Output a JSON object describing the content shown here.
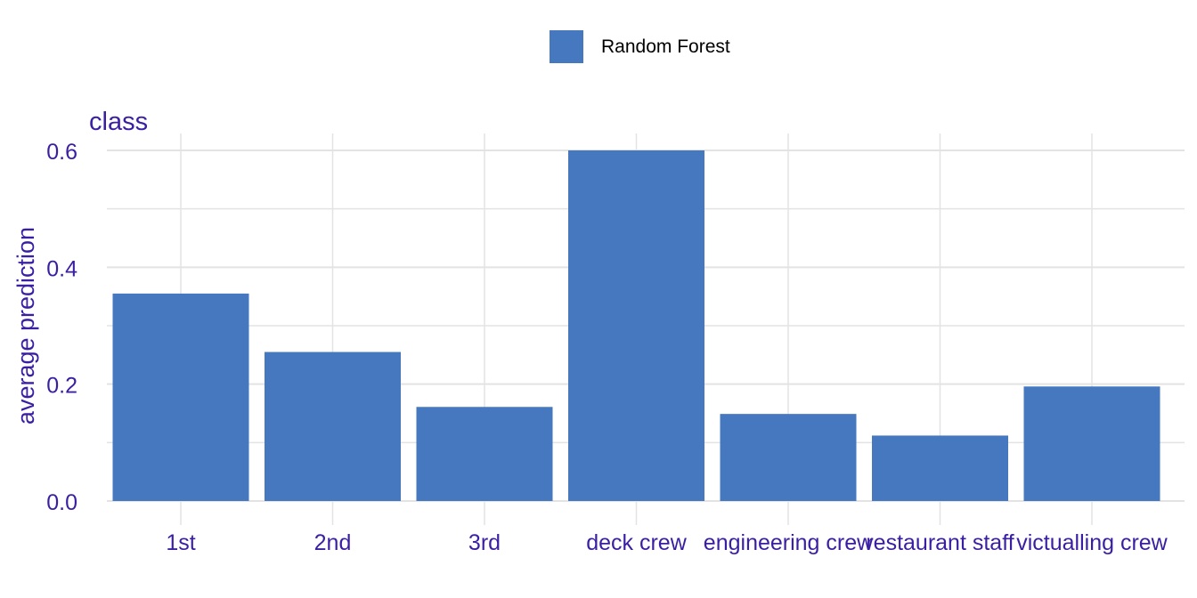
{
  "legend": {
    "label": "Random Forest"
  },
  "colors": {
    "bar": "#4578bf",
    "text": "#3b1fa3",
    "grid": "#e3e3e3"
  },
  "chart_data": {
    "type": "bar",
    "title": "class",
    "xlabel": "",
    "ylabel": "average prediction",
    "categories": [
      "1st",
      "2nd",
      "3rd",
      "deck crew",
      "engineering crew",
      "restaurant staff",
      "victualling crew"
    ],
    "series": [
      {
        "name": "Random Forest",
        "values": [
          0.355,
          0.255,
          0.161,
          0.6,
          0.149,
          0.112,
          0.196
        ]
      }
    ],
    "ylim": [
      0,
      0.6
    ],
    "yticks": [
      0.0,
      0.2,
      0.4,
      0.6
    ],
    "ytick_labels": [
      "0.0",
      "0.2",
      "0.4",
      "0.6"
    ],
    "grid": true,
    "legend_position": "top"
  }
}
